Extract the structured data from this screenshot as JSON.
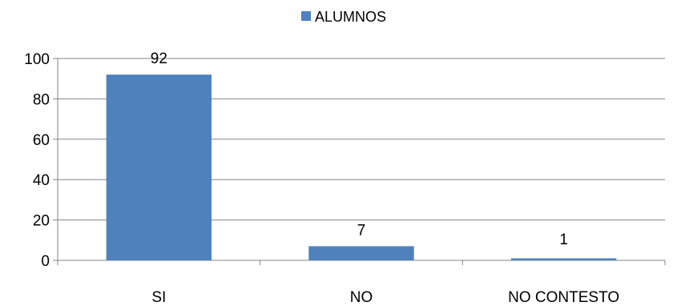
{
  "chart_data": {
    "type": "bar",
    "categories": [
      "SI",
      "NO",
      "NO CONTESTO"
    ],
    "series": [
      {
        "name": "ALUMNOS",
        "values": [
          92,
          7,
          1
        ],
        "color": "#4F81BD"
      }
    ],
    "data_labels": [
      "92",
      "7",
      "1"
    ],
    "ylim": [
      0,
      100
    ],
    "yticks": [
      0,
      20,
      40,
      60,
      80,
      100
    ],
    "ytick_labels": [
      "0",
      "20",
      "40",
      "60",
      "80",
      "100"
    ],
    "grid": true,
    "legend": "top-center",
    "xlabel": "",
    "ylabel": "",
    "title": ""
  }
}
